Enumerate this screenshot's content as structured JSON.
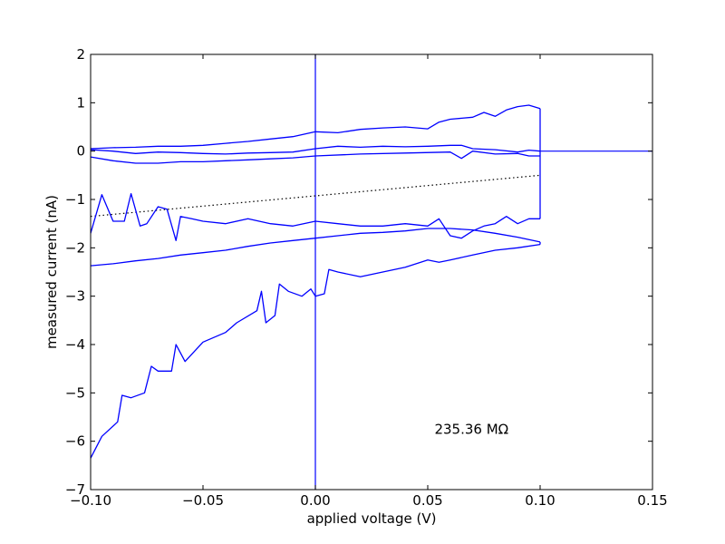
{
  "chart_data": {
    "type": "line",
    "xlabel": "applied voltage (V)",
    "ylabel": "measured current (nA)",
    "xlim": [
      -0.1,
      0.15
    ],
    "ylim": [
      -7,
      2
    ],
    "xticks": [
      -0.1,
      -0.05,
      0.0,
      0.05,
      0.1,
      0.15
    ],
    "yticks": [
      -7,
      -6,
      -5,
      -4,
      -3,
      -2,
      -1,
      0,
      1,
      2
    ],
    "xtick_labels": [
      "−0.10",
      "−0.05",
      "0.00",
      "0.05",
      "0.10",
      "0.15"
    ],
    "ytick_labels": [
      "−7",
      "−6",
      "−5",
      "−4",
      "−3",
      "−2",
      "−1",
      "0",
      "1",
      "2"
    ],
    "annotation": {
      "text": "235.36 MΩ",
      "x": 0.053,
      "y": -5.85
    },
    "reference_lines": {
      "x0": 0,
      "y0": 0,
      "color": "#0000ff"
    },
    "fit_line": {
      "style": "dotted",
      "color": "#000000",
      "x": [
        -0.1,
        0.1
      ],
      "y": [
        -1.35,
        -0.5
      ]
    },
    "series_color": "#0000ff",
    "series": [
      {
        "x": [
          -0.1,
          -0.09,
          -0.08,
          -0.07,
          -0.06,
          -0.05,
          -0.04,
          -0.03,
          -0.02,
          -0.01,
          0.0,
          0.01,
          0.02,
          0.03,
          0.04,
          0.05,
          0.055,
          0.06,
          0.07,
          0.075,
          0.08,
          0.085,
          0.09,
          0.095,
          0.1
        ],
        "y": [
          0.05,
          0.07,
          0.08,
          0.1,
          0.1,
          0.12,
          0.16,
          0.2,
          0.25,
          0.3,
          0.4,
          0.38,
          0.45,
          0.48,
          0.5,
          0.46,
          0.6,
          0.66,
          0.7,
          0.8,
          0.72,
          0.85,
          0.92,
          0.95,
          0.88
        ]
      },
      {
        "x": [
          -0.1,
          -0.09,
          -0.08,
          -0.07,
          -0.06,
          -0.05,
          -0.04,
          -0.03,
          -0.02,
          -0.01,
          0.0,
          0.01,
          0.02,
          0.03,
          0.04,
          0.05,
          0.06,
          0.065,
          0.07,
          0.08,
          0.09,
          0.095,
          0.1
        ],
        "y": [
          0.03,
          0.0,
          -0.05,
          -0.02,
          -0.03,
          -0.05,
          -0.06,
          -0.04,
          -0.03,
          -0.02,
          0.05,
          0.1,
          0.08,
          0.1,
          0.09,
          0.1,
          0.12,
          0.12,
          0.05,
          0.03,
          -0.02,
          0.02,
          0.0
        ]
      },
      {
        "x": [
          -0.1,
          -0.09,
          -0.08,
          -0.07,
          -0.06,
          -0.05,
          -0.04,
          -0.03,
          -0.02,
          -0.01,
          0.0,
          0.02,
          0.04,
          0.06,
          0.065,
          0.07,
          0.08,
          0.09,
          0.095,
          0.1
        ],
        "y": [
          -0.12,
          -0.2,
          -0.25,
          -0.25,
          -0.22,
          -0.22,
          -0.2,
          -0.18,
          -0.16,
          -0.14,
          -0.1,
          -0.06,
          -0.04,
          -0.02,
          -0.15,
          0.0,
          -0.06,
          -0.05,
          -0.1,
          -0.1
        ]
      },
      {
        "x": [
          -0.1,
          -0.095,
          -0.09,
          -0.085,
          -0.082,
          -0.078,
          -0.075,
          -0.07,
          -0.066,
          -0.062,
          -0.06,
          -0.055,
          -0.05,
          -0.04,
          -0.03,
          -0.02,
          -0.01,
          0.0,
          0.01,
          0.02,
          0.03,
          0.04,
          0.05,
          0.055,
          0.06,
          0.065,
          0.07,
          0.075,
          0.08,
          0.085,
          0.09,
          0.095,
          0.1
        ],
        "y": [
          -1.7,
          -0.9,
          -1.45,
          -1.45,
          -0.88,
          -1.55,
          -1.5,
          -1.15,
          -1.2,
          -1.85,
          -1.35,
          -1.4,
          -1.45,
          -1.5,
          -1.4,
          -1.5,
          -1.55,
          -1.45,
          -1.5,
          -1.55,
          -1.55,
          -1.5,
          -1.55,
          -1.4,
          -1.75,
          -1.8,
          -1.65,
          -1.55,
          -1.5,
          -1.35,
          -1.5,
          -1.4,
          -1.4
        ]
      },
      {
        "x": [
          -0.1,
          -0.09,
          -0.08,
          -0.07,
          -0.06,
          -0.05,
          -0.04,
          -0.03,
          -0.02,
          -0.01,
          0.0,
          0.01,
          0.02,
          0.03,
          0.04,
          0.05,
          0.06,
          0.07,
          0.08,
          0.09,
          0.1
        ],
        "y": [
          -2.37,
          -2.33,
          -2.27,
          -2.22,
          -2.15,
          -2.1,
          -2.05,
          -1.97,
          -1.9,
          -1.85,
          -1.8,
          -1.75,
          -1.7,
          -1.68,
          -1.65,
          -1.6,
          -1.6,
          -1.63,
          -1.7,
          -1.78,
          -1.88
        ]
      },
      {
        "x": [
          -0.1,
          -0.095,
          -0.088,
          -0.086,
          -0.082,
          -0.076,
          -0.073,
          -0.07,
          -0.067,
          -0.064,
          -0.062,
          -0.058,
          -0.05,
          -0.04,
          -0.035,
          -0.026,
          -0.024,
          -0.022,
          -0.018,
          -0.016,
          -0.012,
          -0.006,
          -0.002,
          0.0,
          0.004,
          0.006,
          0.01,
          0.02,
          0.03,
          0.04,
          0.05,
          0.055,
          0.06,
          0.07,
          0.08,
          0.09,
          0.1
        ],
        "y": [
          -6.35,
          -5.9,
          -5.6,
          -5.05,
          -5.1,
          -5.0,
          -4.45,
          -4.55,
          -4.55,
          -4.55,
          -4.0,
          -4.35,
          -3.95,
          -3.75,
          -3.55,
          -3.3,
          -2.9,
          -3.55,
          -3.4,
          -2.75,
          -2.9,
          -3.0,
          -2.85,
          -3.0,
          -2.95,
          -2.45,
          -2.5,
          -2.6,
          -2.5,
          -2.4,
          -2.25,
          -2.3,
          -2.25,
          -2.15,
          -2.05,
          -2.0,
          -1.93
        ]
      }
    ]
  }
}
